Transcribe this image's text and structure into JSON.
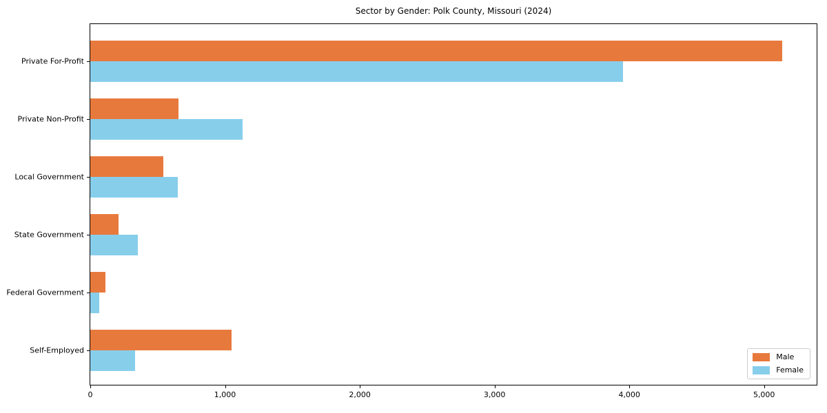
{
  "chart_data": {
    "type": "bar",
    "orientation": "horizontal",
    "title": "Sector by Gender: Polk County, Missouri (2024)",
    "categories": [
      "Private For-Profit",
      "Private Non-Profit",
      "Local Government",
      "State Government",
      "Federal Government",
      "Self-Employed"
    ],
    "series": [
      {
        "name": "Male",
        "color": "#e8793d",
        "values": [
          5133,
          654,
          541,
          209,
          112,
          1046
        ]
      },
      {
        "name": "Female",
        "color": "#87ceeb",
        "values": [
          3954,
          1132,
          648,
          352,
          66,
          332
        ]
      }
    ],
    "xlabel": "",
    "ylabel": "",
    "xlim": [
      0,
      5390
    ],
    "xticks": [
      0,
      1000,
      2000,
      3000,
      4000,
      5000
    ],
    "xtick_labels": [
      "0",
      "1,000",
      "2,000",
      "3,000",
      "4,000",
      "5,000"
    ],
    "grid": false,
    "legend": {
      "position": "lower right",
      "items": [
        "Male",
        "Female"
      ]
    },
    "colors": {
      "male_bar": "#e8793d",
      "female_bar": "#87ceeb",
      "axis": "#000000",
      "background": "#ffffff",
      "legend_border": "#cccccc"
    }
  }
}
